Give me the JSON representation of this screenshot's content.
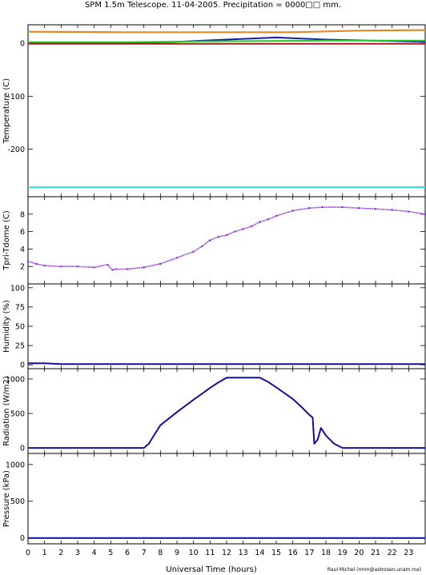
{
  "title": "SPM 1.5m Telescope. 11-04-2005. Precipitation = 0000□□ mm.",
  "xlabel": "Universal Time (hours)",
  "credit": "Raul Michel (rmm@astrosen.unam.mx)",
  "xticks": [
    "0",
    "1",
    "2",
    "3",
    "4",
    "5",
    "6",
    "7",
    "8",
    "9",
    "10",
    "11",
    "12",
    "13",
    "14",
    "15",
    "16",
    "17",
    "18",
    "19",
    "20",
    "21",
    "22",
    "23"
  ],
  "colors": {
    "orange": "#e08a2a",
    "green": "#22cc22",
    "blue": "#1a1aa8",
    "darkred": "#a02020",
    "cyan": "#33e6e6",
    "purple": "#8a2be2",
    "navy": "#1010a0"
  },
  "chart_data": [
    {
      "type": "line",
      "ylabel": "Temperature (C)",
      "ylim": [
        -290,
        35
      ],
      "yticks": [
        0,
        -100,
        -200
      ],
      "xlim": [
        0,
        24
      ],
      "series": [
        {
          "color": "orange",
          "x": [
            0,
            6,
            12,
            16,
            20,
            24
          ],
          "y": [
            22,
            21,
            21,
            21,
            24,
            25
          ]
        },
        {
          "color": "blue",
          "x": [
            0,
            5,
            9,
            12,
            15,
            18,
            24
          ],
          "y": [
            0,
            0,
            3,
            7,
            11,
            7,
            3
          ]
        },
        {
          "color": "green",
          "x": [
            0,
            6,
            12,
            18,
            24
          ],
          "y": [
            2,
            2,
            4,
            5,
            5
          ]
        },
        {
          "color": "darkred",
          "x": [
            0,
            24
          ],
          "y": [
            -1,
            -1
          ]
        },
        {
          "color": "cyan",
          "x": [
            0,
            24
          ],
          "y": [
            -272,
            -272
          ]
        }
      ]
    },
    {
      "type": "scatter",
      "ylabel": "Tpri-Tdome (C)",
      "ylim": [
        0,
        10
      ],
      "yticks": [
        2,
        4,
        6,
        8
      ],
      "xlim": [
        0,
        24
      ],
      "series": [
        {
          "color": "purple",
          "x": [
            0,
            0.5,
            1,
            2,
            3,
            4,
            4.8,
            5.1,
            5.3,
            6,
            7,
            8,
            9,
            10,
            10.5,
            11,
            11.5,
            12,
            12.5,
            13,
            13.5,
            14,
            14.5,
            15,
            16,
            17,
            17.8,
            19,
            20,
            21,
            22,
            23,
            24
          ],
          "y": [
            2.6,
            2.3,
            2.1,
            2.0,
            2.0,
            1.9,
            2.2,
            1.6,
            1.7,
            1.7,
            1.9,
            2.3,
            3.0,
            3.7,
            4.3,
            5.0,
            5.4,
            5.6,
            6.0,
            6.3,
            6.6,
            7.1,
            7.4,
            7.8,
            8.4,
            8.7,
            8.8,
            8.8,
            8.7,
            8.6,
            8.5,
            8.3,
            8.0
          ]
        }
      ]
    },
    {
      "type": "line",
      "ylabel": "Humidity (%)",
      "ylim": [
        -5,
        105
      ],
      "yticks": [
        0,
        25,
        50,
        75,
        100
      ],
      "xlim": [
        0,
        24
      ],
      "series": [
        {
          "color": "navy",
          "x": [
            0,
            1,
            2,
            24
          ],
          "y": [
            2,
            2,
            1,
            1
          ]
        }
      ]
    },
    {
      "type": "line",
      "ylabel": "Radiation (W/m2)",
      "ylim": [
        -80,
        1150
      ],
      "yticks": [
        0,
        500,
        1000
      ],
      "xlim": [
        0,
        24
      ],
      "series": [
        {
          "color": "navy",
          "x": [
            0,
            7,
            7.3,
            7.6,
            8,
            9,
            10,
            11,
            11.5,
            12,
            13,
            14,
            14.5,
            15,
            16,
            16.5,
            17,
            17.2,
            17.3,
            17.5,
            17.7,
            18,
            18.5,
            19,
            20,
            24
          ],
          "y": [
            0,
            0,
            60,
            180,
            330,
            520,
            700,
            870,
            950,
            1020,
            1020,
            1020,
            960,
            880,
            710,
            600,
            480,
            440,
            60,
            120,
            290,
            180,
            60,
            0,
            0,
            0
          ]
        }
      ]
    },
    {
      "type": "line",
      "ylabel": "Pressure (kPa)",
      "ylim": [
        -80,
        1150
      ],
      "yticks": [
        0,
        500,
        1000
      ],
      "xlim": [
        0,
        24
      ],
      "series": [
        {
          "color": "navy",
          "x": [
            0,
            24
          ],
          "y": [
            0,
            0
          ]
        }
      ]
    }
  ]
}
